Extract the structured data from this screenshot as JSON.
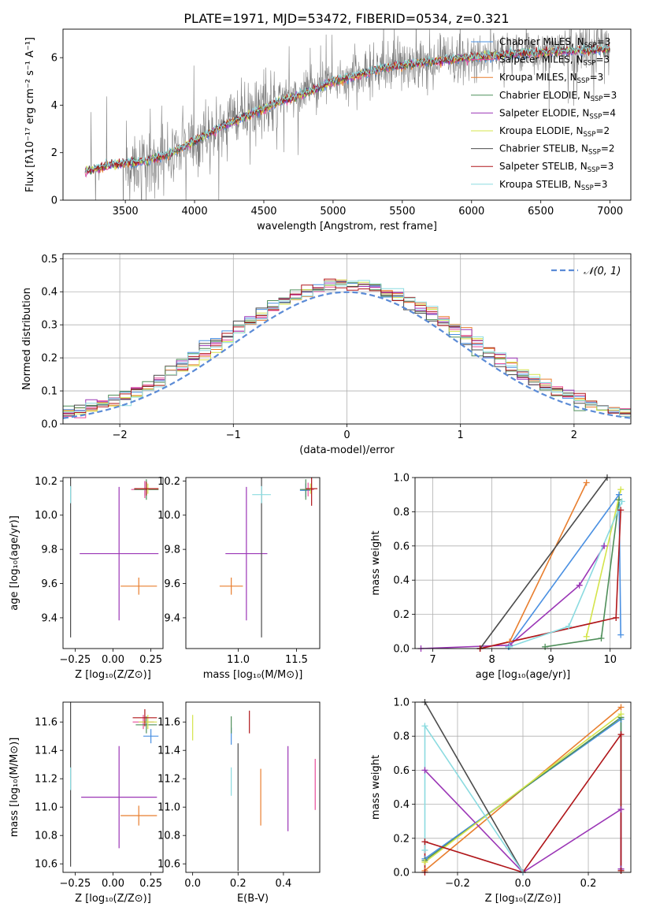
{
  "title": "PLATE=1971, MJD=53472, FIBERID=0534, z=0.321",
  "colors": {
    "chabrier_miles": "#4a90e2",
    "salpeter_miles": "#e94c9a",
    "kroupa_miles": "#e87e2e",
    "chabrier_elodie": "#4f8f5a",
    "salpeter_elodie": "#9b36b6",
    "kroupa_elodie": "#d4e44b",
    "chabrier_stelib": "#4b4b4b",
    "salpeter_stelib": "#b0161a",
    "kroupa_stelib": "#8bdbe0",
    "observed": "#808080",
    "gaussian": "#5b8bd6",
    "grid": "#b0b0b0"
  },
  "chart_data": [
    {
      "type": "line",
      "xlabel": "wavelength [Angstrom, rest frame]",
      "ylabel": "Flux [fλ10⁻¹⁷ erg cm⁻² s⁻¹ A⁻¹]",
      "xlim": [
        3050,
        7150
      ],
      "ylim": [
        0,
        7.2
      ],
      "xticks": [
        "3500",
        "4000",
        "4500",
        "5000",
        "5500",
        "6000",
        "6500",
        "7000"
      ],
      "yticks": [
        "0",
        "2",
        "4",
        "6"
      ],
      "grid": false,
      "legend_position": "top-right",
      "continuum_x": [
        3200,
        3400,
        3600,
        3800,
        4000,
        4200,
        4400,
        4600,
        4800,
        5000,
        5200,
        5400,
        5600,
        5800,
        6000,
        6200,
        6400,
        6600,
        6800,
        7000
      ],
      "continuum_y": [
        1.2,
        1.5,
        1.6,
        1.9,
        2.5,
        3.1,
        3.6,
        4.1,
        4.5,
        5.0,
        5.3,
        5.6,
        5.75,
        5.9,
        6.0,
        6.1,
        6.2,
        6.25,
        6.3,
        6.35
      ],
      "series": [
        {
          "name": "Chabrier MILES, N",
          "sub": "SSP",
          "suffix": "=3",
          "color_key": "chabrier_miles"
        },
        {
          "name": "Salpeter MILES, N",
          "sub": "SSP",
          "suffix": "=3",
          "color_key": "salpeter_miles"
        },
        {
          "name": "Kroupa MILES, N",
          "sub": "SSP",
          "suffix": "=3",
          "color_key": "kroupa_miles"
        },
        {
          "name": "Chabrier ELODIE, N",
          "sub": "SSP",
          "suffix": "=3",
          "color_key": "chabrier_elodie"
        },
        {
          "name": "Salpeter ELODIE, N",
          "sub": "SSP",
          "suffix": "=4",
          "color_key": "salpeter_elodie"
        },
        {
          "name": "Kroupa ELODIE, N",
          "sub": "SSP",
          "suffix": "=2",
          "color_key": "kroupa_elodie"
        },
        {
          "name": "Chabrier STELIB, N",
          "sub": "SSP",
          "suffix": "=2",
          "color_key": "chabrier_stelib"
        },
        {
          "name": "Salpeter STELIB, N",
          "sub": "SSP",
          "suffix": "=3",
          "color_key": "salpeter_stelib"
        },
        {
          "name": "Kroupa STELIB, N",
          "sub": "SSP",
          "suffix": "=3",
          "color_key": "kroupa_stelib"
        }
      ]
    },
    {
      "type": "histogram",
      "xlabel": "(data-model)/error",
      "ylabel": "Normed distribution",
      "xlim": [
        -2.5,
        2.5
      ],
      "ylim": [
        0,
        0.515
      ],
      "xticks": [
        "−2",
        "−1",
        "0",
        "1",
        "2"
      ],
      "yticks": [
        "0.0",
        "0.1",
        "0.2",
        "0.3",
        "0.4",
        "0.5"
      ],
      "grid": true,
      "bin_width": 0.1,
      "legend": "𝒩(0, 1)",
      "legend_position": "top-right"
    },
    {
      "type": "errorbar",
      "xlabel": "Z [log₁₀(Z/Z⊙)]",
      "ylabel": "age  [log₁₀(age/yr)]",
      "xlim": [
        -0.33,
        0.33
      ],
      "ylim": [
        9.22,
        10.22
      ],
      "xticks": [
        "−0.25",
        "0.00",
        "0.25"
      ],
      "yticks": [
        "9.4",
        "9.6",
        "9.8",
        "10.0",
        "10.2"
      ],
      "points": [
        {
          "x": 0.21,
          "xerr": 0.07,
          "y": 10.155,
          "yerr": 0.04,
          "color_key": "chabrier_miles"
        },
        {
          "x": 0.21,
          "xerr": 0.09,
          "y": 10.15,
          "yerr": 0.05,
          "color_key": "salpeter_miles"
        },
        {
          "x": 0.17,
          "xerr": 0.12,
          "y": 9.585,
          "yerr": 0.05,
          "color_key": "kroupa_miles"
        },
        {
          "x": 0.22,
          "xerr": 0.08,
          "y": 10.15,
          "yerr": 0.06,
          "color_key": "chabrier_elodie"
        },
        {
          "x": 0.04,
          "xerr": 0.26,
          "y": 9.775,
          "yerr": 0.39,
          "color_key": "salpeter_elodie"
        },
        {
          "x": 0.23,
          "xerr": 0.07,
          "y": 10.155,
          "yerr": 0.03,
          "color_key": "kroupa_elodie"
        },
        {
          "x": -0.28,
          "xerr": 0.0,
          "y": 9.945,
          "yerr": 0.66,
          "color_key": "chabrier_stelib"
        },
        {
          "x": 0.22,
          "xerr": 0.08,
          "y": 10.155,
          "yerr": 0.04,
          "color_key": "salpeter_stelib"
        },
        {
          "x": -0.28,
          "xerr": 0.0,
          "y": 10.12,
          "yerr": 0.05,
          "color_key": "kroupa_stelib"
        }
      ]
    },
    {
      "type": "errorbar",
      "xlabel": "mass [log₁₀(M/M⊙)]",
      "ylabel": "",
      "xlim": [
        10.55,
        11.7
      ],
      "ylim": [
        9.22,
        10.22
      ],
      "xticks": [
        "11.0",
        "11.5"
      ],
      "yticks": [
        "9.4",
        "9.6",
        "9.8",
        "10.0",
        "10.2"
      ],
      "points": [
        {
          "x": 11.58,
          "xerr": 0.05,
          "y": 10.145,
          "yerr": 0.04,
          "color_key": "chabrier_miles"
        },
        {
          "x": 11.6,
          "xerr": 0.05,
          "y": 10.15,
          "yerr": 0.04,
          "color_key": "salpeter_miles"
        },
        {
          "x": 10.94,
          "xerr": 0.1,
          "y": 9.585,
          "yerr": 0.05,
          "color_key": "kroupa_miles"
        },
        {
          "x": 11.58,
          "xerr": 0.05,
          "y": 10.15,
          "yerr": 0.06,
          "color_key": "chabrier_elodie"
        },
        {
          "x": 11.07,
          "xerr": 0.18,
          "y": 9.775,
          "yerr": 0.39,
          "color_key": "salpeter_elodie"
        },
        {
          "x": 11.62,
          "xerr": 0.04,
          "y": 10.155,
          "yerr": 0.03,
          "color_key": "kroupa_elodie"
        },
        {
          "x": 11.2,
          "xerr": 0.0,
          "y": 9.945,
          "yerr": 0.66,
          "color_key": "chabrier_stelib"
        },
        {
          "x": 11.63,
          "xerr": 0.05,
          "y": 10.155,
          "yerr": 0.1,
          "color_key": "salpeter_stelib"
        },
        {
          "x": 11.2,
          "xerr": 0.08,
          "y": 10.12,
          "yerr": 0.05,
          "color_key": "kroupa_stelib"
        }
      ]
    },
    {
      "type": "line",
      "xlabel": "age  [log₁₀(age/yr)]",
      "ylabel": "mass weight",
      "xlim": [
        6.7,
        10.35
      ],
      "ylim": [
        0,
        1.0
      ],
      "xticks": [
        "7",
        "8",
        "9",
        "10"
      ],
      "yticks": [
        "0.0",
        "0.2",
        "0.4",
        "0.6",
        "0.8",
        "1.0"
      ],
      "grid": true,
      "series": [
        {
          "color_key": "chabrier_miles",
          "x": [
            8.28,
            10.15,
            10.18
          ],
          "y": [
            0.01,
            0.9,
            0.08
          ]
        },
        {
          "color_key": "kroupa_miles",
          "x": [
            7.8,
            8.3,
            9.6
          ],
          "y": [
            0.0,
            0.04,
            0.97
          ]
        },
        {
          "color_key": "chabrier_elodie",
          "x": [
            8.9,
            9.85,
            10.15
          ],
          "y": [
            0.01,
            0.06,
            0.87
          ]
        },
        {
          "color_key": "salpeter_elodie",
          "x": [
            6.8,
            8.3,
            9.48,
            9.9
          ],
          "y": [
            0.0,
            0.02,
            0.37,
            0.6
          ]
        },
        {
          "color_key": "kroupa_elodie",
          "x": [
            9.6,
            10.18
          ],
          "y": [
            0.07,
            0.93
          ]
        },
        {
          "color_key": "chabrier_stelib",
          "x": [
            7.8,
            9.95
          ],
          "y": [
            0.0,
            1.0
          ]
        },
        {
          "color_key": "salpeter_stelib",
          "x": [
            7.8,
            10.1,
            10.18
          ],
          "y": [
            0.0,
            0.18,
            0.81
          ]
        },
        {
          "color_key": "kroupa_stelib",
          "x": [
            8.3,
            9.3,
            10.2
          ],
          "y": [
            0.01,
            0.13,
            0.86
          ]
        }
      ]
    },
    {
      "type": "errorbar",
      "xlabel": "Z [log₁₀(Z/Z⊙)]",
      "ylabel": "mass [log₁₀(M/M⊙)]",
      "xlim": [
        -0.33,
        0.33
      ],
      "ylim": [
        10.54,
        11.74
      ],
      "xticks": [
        "−0.25",
        "0.00",
        "0.25"
      ],
      "yticks": [
        "10.6",
        "10.8",
        "11.0",
        "11.2",
        "11.4",
        "11.6"
      ],
      "points": [
        {
          "x": 0.25,
          "xerr": 0.05,
          "y": 11.5,
          "yerr": 0.05,
          "color_key": "chabrier_miles"
        },
        {
          "x": 0.2,
          "xerr": 0.07,
          "y": 11.6,
          "yerr": 0.05,
          "color_key": "salpeter_miles"
        },
        {
          "x": 0.17,
          "xerr": 0.12,
          "y": 10.94,
          "yerr": 0.07,
          "color_key": "kroupa_miles"
        },
        {
          "x": 0.22,
          "xerr": 0.07,
          "y": 11.58,
          "yerr": 0.06,
          "color_key": "chabrier_elodie"
        },
        {
          "x": 0.04,
          "xerr": 0.25,
          "y": 11.07,
          "yerr": 0.36,
          "color_key": "salpeter_elodie"
        },
        {
          "x": 0.23,
          "xerr": 0.06,
          "y": 11.6,
          "yerr": 0.05,
          "color_key": "kroupa_elodie"
        },
        {
          "x": -0.28,
          "xerr": 0.0,
          "y": 11.2,
          "yerr": 0.62,
          "color_key": "chabrier_stelib"
        },
        {
          "x": 0.21,
          "xerr": 0.08,
          "y": 11.63,
          "yerr": 0.06,
          "color_key": "salpeter_stelib"
        },
        {
          "x": -0.28,
          "xerr": 0.0,
          "y": 11.2,
          "yerr": 0.08,
          "color_key": "kroupa_stelib"
        }
      ]
    },
    {
      "type": "errorbar",
      "xlabel": "E(B-V)",
      "ylabel": "",
      "xlim": [
        -0.03,
        0.56
      ],
      "ylim": [
        10.54,
        11.74
      ],
      "xticks": [
        "0.0",
        "0.2",
        "0.4"
      ],
      "yticks": [
        "10.6",
        "10.8",
        "11.0",
        "11.2",
        "11.4",
        "11.6"
      ],
      "points": [
        {
          "x": 0.17,
          "xerr": 0.0,
          "y": 11.5,
          "yerr": 0.06,
          "color_key": "chabrier_miles"
        },
        {
          "x": 0.3,
          "xerr": 0.0,
          "y": 11.07,
          "yerr": 0.2,
          "color_key": "kroupa_miles"
        },
        {
          "x": 0.17,
          "xerr": 0.0,
          "y": 11.58,
          "yerr": 0.06,
          "color_key": "chabrier_elodie"
        },
        {
          "x": 0.42,
          "xerr": 0.0,
          "y": 11.13,
          "yerr": 0.3,
          "color_key": "salpeter_elodie"
        },
        {
          "x": 0.0,
          "xerr": 0.0,
          "y": 11.56,
          "yerr": 0.09,
          "color_key": "kroupa_elodie"
        },
        {
          "x": 0.2,
          "xerr": 0.0,
          "y": 11.0,
          "yerr": 0.45,
          "color_key": "chabrier_stelib"
        },
        {
          "x": 0.25,
          "xerr": 0.0,
          "y": 11.6,
          "yerr": 0.08,
          "color_key": "salpeter_stelib"
        },
        {
          "x": 0.17,
          "xerr": 0.0,
          "y": 11.18,
          "yerr": 0.1,
          "color_key": "kroupa_stelib"
        },
        {
          "x": 0.54,
          "xerr": 0.0,
          "y": 11.16,
          "yerr": 0.18,
          "color_key": "salpeter_miles"
        }
      ]
    },
    {
      "type": "line",
      "xlabel": "Z [log₁₀(Z/Z⊙)]",
      "ylabel": "mass weight",
      "xlim": [
        -0.33,
        0.33
      ],
      "ylim": [
        0,
        1.0
      ],
      "xticks": [
        "−0.2",
        "0.0",
        "0.2"
      ],
      "yticks": [
        "0.0",
        "0.2",
        "0.4",
        "0.6",
        "0.8",
        "1.0"
      ],
      "grid": true,
      "series": [
        {
          "color_key": "chabrier_miles",
          "x": [
            -0.3,
            0.3,
            0.3
          ],
          "y": [
            0.08,
            0.9,
            0.02
          ]
        },
        {
          "color_key": "kroupa_miles",
          "x": [
            -0.3,
            0.3
          ],
          "y": [
            0.01,
            0.97
          ]
        },
        {
          "color_key": "chabrier_elodie",
          "x": [
            -0.3,
            0.3,
            0.3
          ],
          "y": [
            0.07,
            0.91,
            0.01
          ]
        },
        {
          "color_key": "salpeter_elodie",
          "x": [
            -0.3,
            0.0,
            0.3,
            0.3
          ],
          "y": [
            0.6,
            0.0,
            0.37,
            0.02
          ]
        },
        {
          "color_key": "kroupa_elodie",
          "x": [
            -0.3,
            0.3
          ],
          "y": [
            0.06,
            0.93
          ]
        },
        {
          "color_key": "chabrier_stelib",
          "x": [
            -0.3,
            0.0
          ],
          "y": [
            1.0,
            0.0
          ]
        },
        {
          "color_key": "salpeter_stelib",
          "x": [
            -0.3,
            -0.3,
            0.0,
            0.3,
            0.3
          ],
          "y": [
            0.0,
            0.18,
            0.0,
            0.81,
            0.01
          ]
        },
        {
          "color_key": "kroupa_stelib",
          "x": [
            -0.3,
            -0.3,
            0.0
          ],
          "y": [
            0.13,
            0.86,
            0.0
          ]
        }
      ]
    }
  ]
}
